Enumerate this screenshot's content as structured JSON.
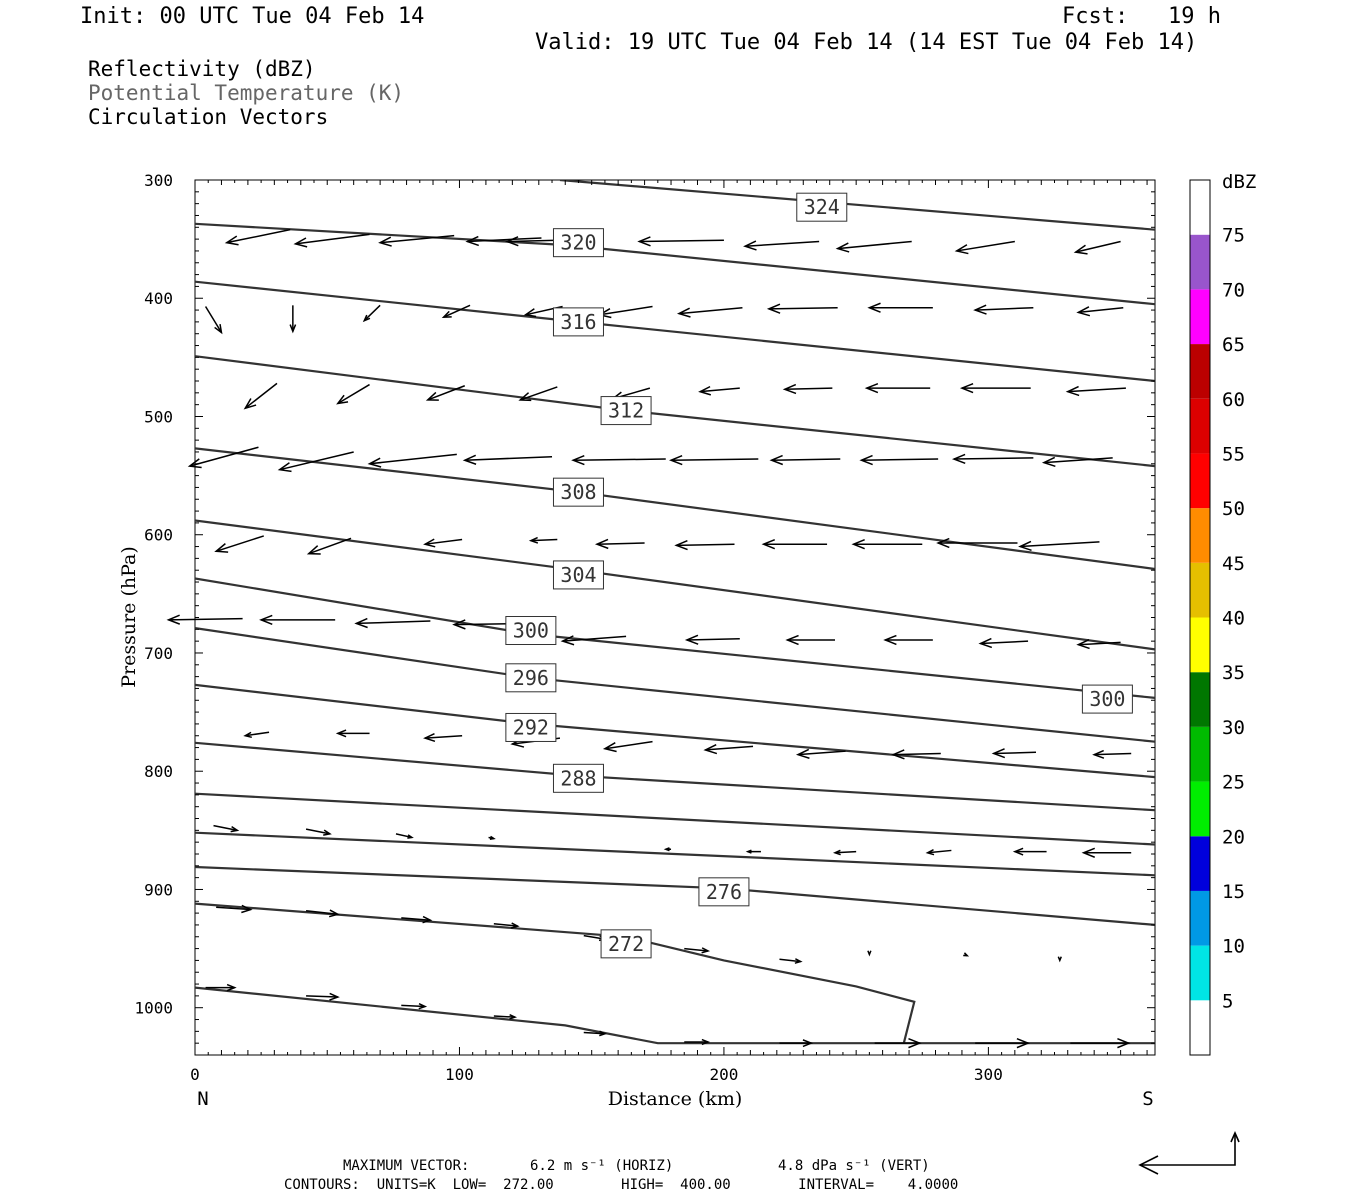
{
  "header": {
    "init": "Init: 00 UTC Tue 04 Feb 14",
    "fcst": "Fcst:   19 h",
    "valid": "Valid: 19 UTC Tue 04 Feb 14 (14 EST Tue 04 Feb 14)"
  },
  "legend_lines": {
    "reflectivity": "Reflectivity (dBZ)",
    "theta": "Potential Temperature (K)",
    "vectors": "Circulation Vectors"
  },
  "footer": {
    "max_vector_label": "MAXIMUM VECTOR:",
    "max_vector_horiz": "6.2 m s⁻¹ (HORIZ)",
    "max_vector_vert": "4.8 dPa s⁻¹ (VERT)",
    "contours": "CONTOURS:  UNITS=K  LOW=  272.00        HIGH=  400.00        INTERVAL=    4.0000"
  },
  "colors": {
    "contour": "#333333",
    "colorbar": [
      "#ffffff",
      "#00e5e5",
      "#0099e5",
      "#0000dd",
      "#00ee00",
      "#00bb00",
      "#007700",
      "#ffff00",
      "#e5bf00",
      "#ff8c00",
      "#ff0000",
      "#dd0000",
      "#bb0000",
      "#ff00ff",
      "#9955cc",
      "#ffffff"
    ]
  },
  "chart_data": {
    "type": "contour",
    "title": "",
    "xlabel": "Distance (km)",
    "ylabel": "Pressure (hPa)",
    "xlim": [
      0,
      363
    ],
    "ylim": [
      1040,
      300
    ],
    "x_ticks": [
      0,
      100,
      200,
      300
    ],
    "y_ticks": [
      300,
      400,
      500,
      600,
      700,
      800,
      900,
      1000
    ],
    "x_end_labels": {
      "left": "N",
      "right": "S"
    },
    "colorbar": {
      "unit": "dBZ",
      "levels": [
        5,
        10,
        15,
        20,
        25,
        30,
        35,
        40,
        45,
        50,
        55,
        60,
        65,
        70,
        75
      ]
    },
    "theta_contours": [
      {
        "label": "324",
        "x": [
          138,
          363
        ],
        "y": [
          300,
          342
        ]
      },
      {
        "label": "320",
        "x": [
          0,
          140,
          363
        ],
        "y": [
          337,
          355,
          405
        ]
      },
      {
        "label": "316",
        "x": [
          0,
          145,
          363
        ],
        "y": [
          386,
          420,
          470
        ]
      },
      {
        "label": "312",
        "x": [
          0,
          163,
          363
        ],
        "y": [
          449,
          495,
          542
        ]
      },
      {
        "label": "308",
        "x": [
          0,
          145,
          363
        ],
        "y": [
          527,
          564,
          629
        ]
      },
      {
        "label": "304",
        "x": [
          0,
          145,
          363
        ],
        "y": [
          588,
          630,
          697
        ]
      },
      {
        "label": "300",
        "x": [
          0,
          127,
          363
        ],
        "y": [
          637,
          684,
          738
        ]
      },
      {
        "label": "296",
        "x": [
          0,
          127,
          363
        ],
        "y": [
          679,
          721,
          775
        ]
      },
      {
        "label": "292",
        "x": [
          0,
          127,
          363
        ],
        "y": [
          727,
          760,
          805
        ]
      },
      {
        "label": "288",
        "x": [
          0,
          145,
          363
        ],
        "y": [
          776,
          804,
          833
        ]
      },
      {
        "label": "",
        "x": [
          0,
          363
        ],
        "y": [
          819,
          862
        ]
      },
      {
        "label": "",
        "x": [
          0,
          363
        ],
        "y": [
          852,
          888
        ]
      },
      {
        "label": "276",
        "x": [
          0,
          200,
          363
        ],
        "y": [
          881,
          899,
          930
        ]
      },
      {
        "label": "272",
        "x": [
          0,
          163,
          200,
          250,
          272,
          268
        ],
        "y": [
          912,
          940,
          960,
          982,
          995,
          1030
        ]
      },
      {
        "label": "",
        "x": [
          0,
          140,
          175,
          363
        ],
        "y": [
          983,
          1015,
          1030,
          1030
        ]
      }
    ],
    "contour_labels": [
      {
        "text": "324",
        "x": 237,
        "y": 323
      },
      {
        "text": "320",
        "x": 145,
        "y": 353
      },
      {
        "text": "316",
        "x": 145,
        "y": 420
      },
      {
        "text": "312",
        "x": 163,
        "y": 495
      },
      {
        "text": "308",
        "x": 145,
        "y": 564
      },
      {
        "text": "304",
        "x": 145,
        "y": 634
      },
      {
        "text": "300",
        "x": 127,
        "y": 681
      },
      {
        "text": "296",
        "x": 127,
        "y": 721
      },
      {
        "text": "292",
        "x": 127,
        "y": 763
      },
      {
        "text": "288",
        "x": 145,
        "y": 806
      },
      {
        "text": "276",
        "x": 200,
        "y": 902
      },
      {
        "text": "272",
        "x": 163,
        "y": 946
      },
      {
        "text": "300",
        "x": 345,
        "y": 739
      }
    ],
    "circulation_vectors": [
      {
        "x": 36,
        "y": 342,
        "u": -24,
        "w": 11
      },
      {
        "x": 66,
        "y": 346,
        "u": -28,
        "w": 8
      },
      {
        "x": 98,
        "y": 347,
        "u": -28,
        "w": 6
      },
      {
        "x": 131,
        "y": 349,
        "u": -28,
        "w": 3
      },
      {
        "x": 154,
        "y": 350,
        "u": -36,
        "w": 2
      },
      {
        "x": 200,
        "y": 351,
        "u": -32,
        "w": 1
      },
      {
        "x": 236,
        "y": 352,
        "u": -28,
        "w": 4
      },
      {
        "x": 271,
        "y": 352,
        "u": -28,
        "w": 6
      },
      {
        "x": 310,
        "y": 352,
        "u": -22,
        "w": 8
      },
      {
        "x": 350,
        "y": 352,
        "u": -17,
        "w": 9
      },
      {
        "x": 4,
        "y": 407,
        "u": 6,
        "w": 22
      },
      {
        "x": 37,
        "y": 406,
        "u": 0,
        "w": 22
      },
      {
        "x": 70,
        "y": 406,
        "u": -6,
        "w": 13
      },
      {
        "x": 104,
        "y": 406,
        "u": -10,
        "w": 10
      },
      {
        "x": 139,
        "y": 407,
        "u": -14,
        "w": 7
      },
      {
        "x": 173,
        "y": 407,
        "u": -20,
        "w": 7
      },
      {
        "x": 207,
        "y": 408,
        "u": -24,
        "w": 5
      },
      {
        "x": 243,
        "y": 408,
        "u": -26,
        "w": 1
      },
      {
        "x": 279,
        "y": 408,
        "u": -24,
        "w": 0
      },
      {
        "x": 317,
        "y": 408,
        "u": -22,
        "w": 2
      },
      {
        "x": 351,
        "y": 408,
        "u": -17,
        "w": 4
      },
      {
        "x": 31,
        "y": 472,
        "u": -12,
        "w": 21
      },
      {
        "x": 66,
        "y": 473,
        "u": -12,
        "w": 16
      },
      {
        "x": 102,
        "y": 474,
        "u": -14,
        "w": 12
      },
      {
        "x": 137,
        "y": 475,
        "u": -14,
        "w": 11
      },
      {
        "x": 172,
        "y": 476,
        "u": -14,
        "w": 9
      },
      {
        "x": 206,
        "y": 476,
        "u": -15,
        "w": 3
      },
      {
        "x": 241,
        "y": 476,
        "u": -18,
        "w": 1
      },
      {
        "x": 278,
        "y": 476,
        "u": -24,
        "w": 0
      },
      {
        "x": 316,
        "y": 476,
        "u": -26,
        "w": 0
      },
      {
        "x": 352,
        "y": 476,
        "u": -22,
        "w": 3
      },
      {
        "x": 24,
        "y": 526,
        "u": -26,
        "w": 16
      },
      {
        "x": 60,
        "y": 530,
        "u": -28,
        "w": 15
      },
      {
        "x": 99,
        "y": 532,
        "u": -33,
        "w": 8
      },
      {
        "x": 135,
        "y": 534,
        "u": -33,
        "w": 3
      },
      {
        "x": 178,
        "y": 536,
        "u": -35,
        "w": 1
      },
      {
        "x": 213,
        "y": 536,
        "u": -33,
        "w": 1
      },
      {
        "x": 244,
        "y": 536,
        "u": -26,
        "w": 1
      },
      {
        "x": 281,
        "y": 536,
        "u": -29,
        "w": 1
      },
      {
        "x": 317,
        "y": 535,
        "u": -30,
        "w": 1
      },
      {
        "x": 347,
        "y": 535,
        "u": -26,
        "w": 4
      },
      {
        "x": 26,
        "y": 601,
        "u": -18,
        "w": 13
      },
      {
        "x": 59,
        "y": 603,
        "u": -16,
        "w": 13
      },
      {
        "x": 101,
        "y": 604,
        "u": -14,
        "w": 4
      },
      {
        "x": 137,
        "y": 604,
        "u": -10,
        "w": 1
      },
      {
        "x": 170,
        "y": 607,
        "u": -18,
        "w": 1
      },
      {
        "x": 204,
        "y": 608,
        "u": -22,
        "w": 1
      },
      {
        "x": 239,
        "y": 608,
        "u": -24,
        "w": 0
      },
      {
        "x": 275,
        "y": 608,
        "u": -26,
        "w": 0
      },
      {
        "x": 311,
        "y": 607,
        "u": -30,
        "w": 0
      },
      {
        "x": 342,
        "y": 606,
        "u": -30,
        "w": 4
      },
      {
        "x": 18,
        "y": 671,
        "u": -28,
        "w": 1
      },
      {
        "x": 53,
        "y": 672,
        "u": -28,
        "w": 0
      },
      {
        "x": 89,
        "y": 673,
        "u": -28,
        "w": 2
      },
      {
        "x": 126,
        "y": 675,
        "u": -28,
        "w": 1
      },
      {
        "x": 163,
        "y": 686,
        "u": -24,
        "w": 4
      },
      {
        "x": 206,
        "y": 688,
        "u": -20,
        "w": 1
      },
      {
        "x": 242,
        "y": 689,
        "u": -18,
        "w": 0
      },
      {
        "x": 279,
        "y": 689,
        "u": -18,
        "w": 0
      },
      {
        "x": 315,
        "y": 690,
        "u": -18,
        "w": 2
      },
      {
        "x": 350,
        "y": 691,
        "u": -16,
        "w": 2
      },
      {
        "x": 28,
        "y": 767,
        "u": -9,
        "w": 3
      },
      {
        "x": 66,
        "y": 768,
        "u": -12,
        "w": 0
      },
      {
        "x": 101,
        "y": 770,
        "u": -14,
        "w": 2
      },
      {
        "x": 138,
        "y": 772,
        "u": -18,
        "w": 5
      },
      {
        "x": 173,
        "y": 775,
        "u": -18,
        "w": 6
      },
      {
        "x": 211,
        "y": 779,
        "u": -18,
        "w": 3
      },
      {
        "x": 246,
        "y": 783,
        "u": -18,
        "w": 3
      },
      {
        "x": 282,
        "y": 785,
        "u": -18,
        "w": 1
      },
      {
        "x": 318,
        "y": 784,
        "u": -16,
        "w": 1
      },
      {
        "x": 354,
        "y": 785,
        "u": -14,
        "w": 1
      },
      {
        "x": 7,
        "y": 846,
        "u": 9,
        "w": 4
      },
      {
        "x": 42,
        "y": 849,
        "u": 9,
        "w": 4
      },
      {
        "x": 76,
        "y": 853,
        "u": 6,
        "w": 3
      },
      {
        "x": 111,
        "y": 856,
        "u": 2,
        "w": 1
      },
      {
        "x": 180,
        "y": 866,
        "u": -2,
        "w": 0
      },
      {
        "x": 214,
        "y": 868,
        "u": -5,
        "w": 0
      },
      {
        "x": 250,
        "y": 868,
        "u": -8,
        "w": 1
      },
      {
        "x": 286,
        "y": 867,
        "u": -9,
        "w": 2
      },
      {
        "x": 322,
        "y": 868,
        "u": -12,
        "w": 0
      },
      {
        "x": 354,
        "y": 869,
        "u": -18,
        "w": 0
      },
      {
        "x": 8,
        "y": 915,
        "u": 13,
        "w": 2
      },
      {
        "x": 42,
        "y": 918,
        "u": 12,
        "w": 3
      },
      {
        "x": 78,
        "y": 924,
        "u": 11,
        "w": 2
      },
      {
        "x": 113,
        "y": 929,
        "u": 9,
        "w": 2
      },
      {
        "x": 147,
        "y": 939,
        "u": 8,
        "w": 3
      },
      {
        "x": 185,
        "y": 950,
        "u": 9,
        "w": 2
      },
      {
        "x": 221,
        "y": 959,
        "u": 8,
        "w": 2
      },
      {
        "x": 255,
        "y": 954,
        "u": 0,
        "w": 1
      },
      {
        "x": 291,
        "y": 955,
        "u": 1,
        "w": 1
      },
      {
        "x": 327,
        "y": 958,
        "u": 0,
        "w": 2
      },
      {
        "x": 4,
        "y": 983,
        "u": 11,
        "w": 0
      },
      {
        "x": 42,
        "y": 990,
        "u": 12,
        "w": 1
      },
      {
        "x": 78,
        "y": 998,
        "u": 9,
        "w": 1
      },
      {
        "x": 113,
        "y": 1007,
        "u": 8,
        "w": 1
      },
      {
        "x": 147,
        "y": 1021,
        "u": 8,
        "w": 1
      },
      {
        "x": 185,
        "y": 1029,
        "u": 9,
        "w": 0
      },
      {
        "x": 221,
        "y": 1030,
        "u": 12,
        "w": 0
      },
      {
        "x": 257,
        "y": 1030,
        "u": 17,
        "w": 0
      },
      {
        "x": 295,
        "y": 1030,
        "u": 20,
        "w": 0
      },
      {
        "x": 331,
        "y": 1030,
        "u": 22,
        "w": 0
      }
    ]
  }
}
